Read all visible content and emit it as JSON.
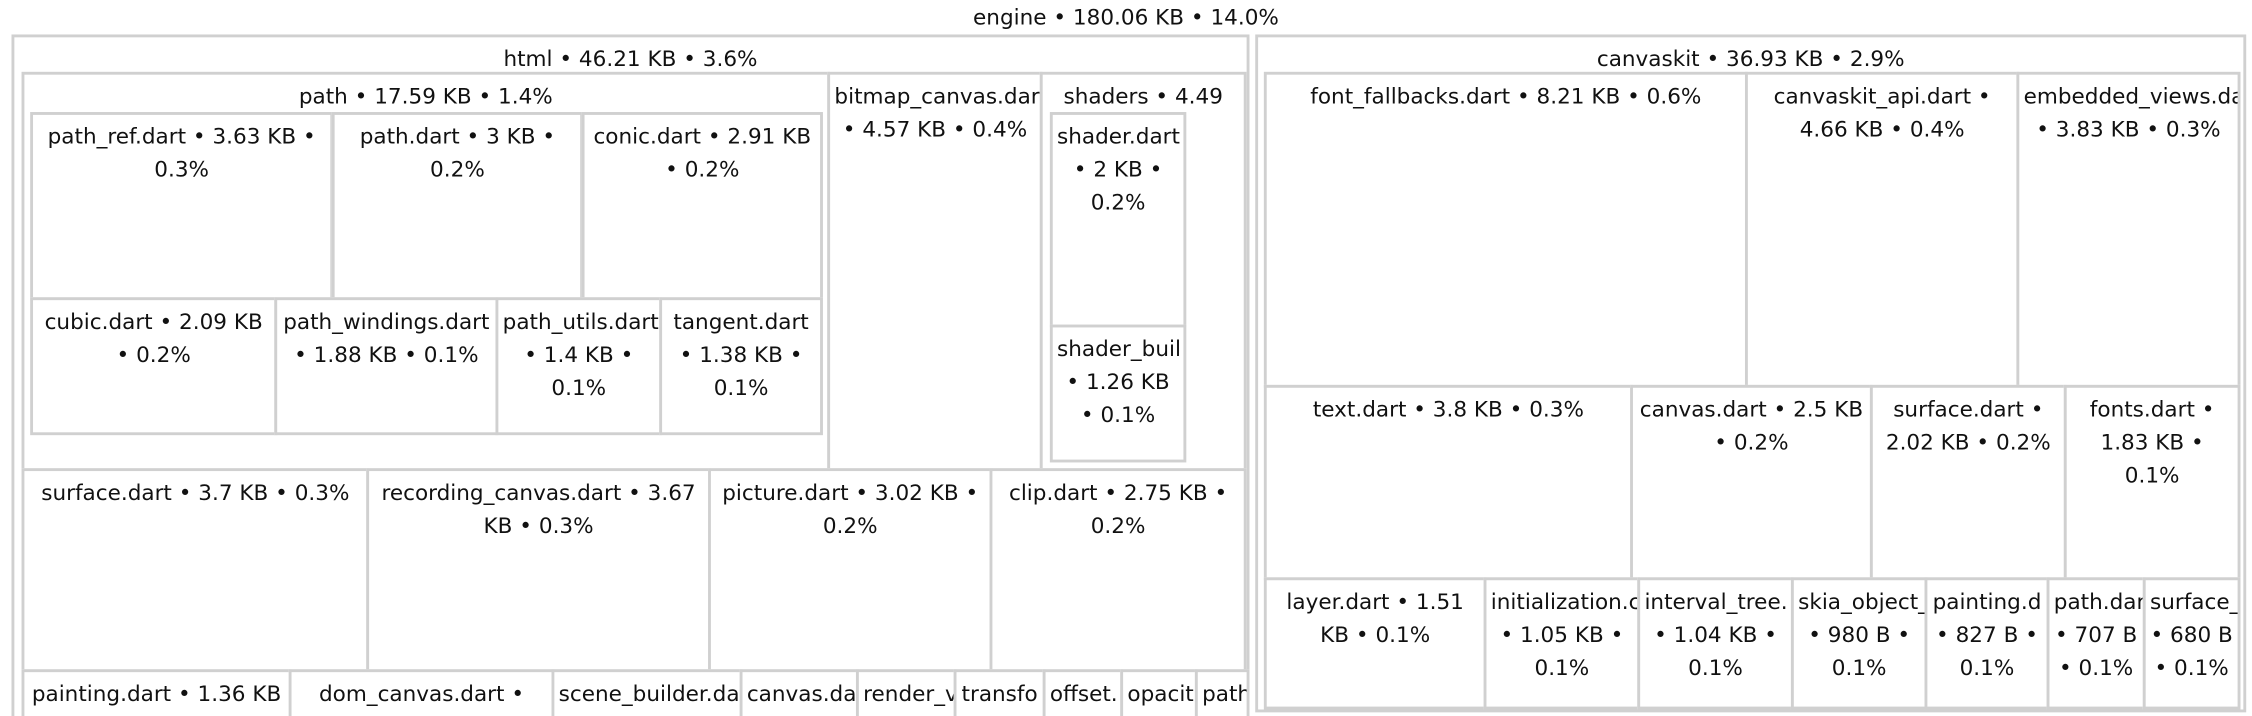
{
  "root": {
    "label": "engine • 180.06 KB • 14.0%",
    "children": [
      {
        "label": "html • 46.21 KB • 3.6%",
        "children": [
          {
            "label": "path • 17.59 KB • 1.4%",
            "children": [
              {
                "label": "path_ref.dart • 3.63 KB • 0.3%"
              },
              {
                "label": "path.dart • 3 KB • 0.2%"
              },
              {
                "label": "conic.dart • 2.91 KB • 0.2%"
              },
              {
                "label": "cubic.dart • 2.09 KB • 0.2%"
              },
              {
                "label": "path_windings.dart • 1.88 KB • 0.1%"
              },
              {
                "label": "path_utils.dart • 1.4 KB • 0.1%"
              },
              {
                "label": "tangent.dart • 1.38 KB • 0.1%"
              }
            ]
          },
          {
            "label": "bitmap_canvas.dar • 4.57 KB • 0.4%"
          },
          {
            "label": "shaders • 4.49",
            "children": [
              {
                "label": "shader.dart • 2 KB • 0.2%"
              },
              {
                "label": "shader_buil • 1.26 KB • 0.1%"
              }
            ]
          },
          {
            "label": "surface.dart • 3.7 KB • 0.3%"
          },
          {
            "label": "recording_canvas.dart • 3.67 KB • 0.3%"
          },
          {
            "label": "picture.dart • 3.02 KB • 0.2%"
          },
          {
            "label": "clip.dart • 2.75 KB • 0.2%"
          },
          {
            "label": "painting.dart • 1.36 KB"
          },
          {
            "label": "dom_canvas.dart •"
          },
          {
            "label": "scene_builder.da"
          },
          {
            "label": "canvas.da"
          },
          {
            "label": "render_v"
          },
          {
            "label": "transfo"
          },
          {
            "label": "offset."
          },
          {
            "label": "opacit"
          },
          {
            "label": "path"
          }
        ]
      },
      {
        "label": "canvaskit • 36.93 KB • 2.9%",
        "children": [
          {
            "label": "font_fallbacks.dart • 8.21 KB • 0.6%"
          },
          {
            "label": "canvaskit_api.dart • 4.66 KB • 0.4%"
          },
          {
            "label": "embedded_views.da • 3.83 KB • 0.3%"
          },
          {
            "label": "text.dart • 3.8 KB • 0.3%"
          },
          {
            "label": "canvas.dart • 2.5 KB • 0.2%"
          },
          {
            "label": "surface.dart • 2.02 KB • 0.2%"
          },
          {
            "label": "fonts.dart • 1.83 KB • 0.1%"
          },
          {
            "label": "layer.dart • 1.51 KB • 0.1%"
          },
          {
            "label": "initialization.c • 1.05 KB • 0.1%"
          },
          {
            "label": "interval_tree. • 1.04 KB • 0.1%"
          },
          {
            "label": "skia_object_ • 980 B • 0.1%"
          },
          {
            "label": "painting.d • 827 B • 0.1%"
          },
          {
            "label": "path.dar • 707 B • 0.1%"
          },
          {
            "label": "surface_ • 680 B • 0.1%"
          }
        ]
      }
    ]
  }
}
